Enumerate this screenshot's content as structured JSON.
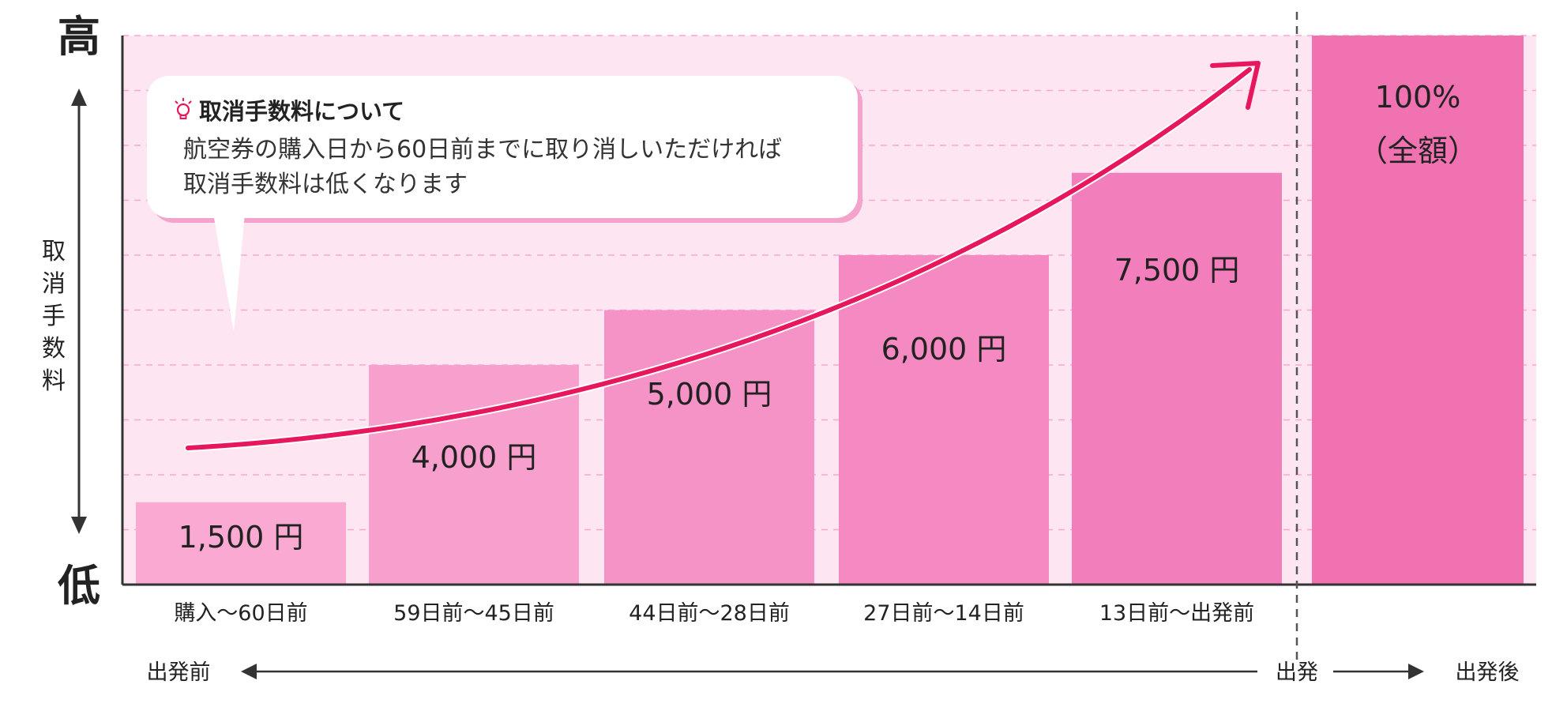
{
  "chart_data": {
    "type": "bar",
    "y_axis": {
      "top_label": "高",
      "bottom_label": "低",
      "title": "取消手数料"
    },
    "ylim": [
      0,
      100
    ],
    "grid": true,
    "categories": [
      "購入～60日前",
      "59日前～45日前",
      "44日前～28日前",
      "27日前～14日前",
      "13日前～出発前",
      ""
    ],
    "values": [
      15,
      40,
      50,
      60,
      75,
      100
    ],
    "value_labels": [
      "1,500 円",
      "4,000 円",
      "5,000 円",
      "6,000 円",
      "7,500 円",
      "100%\n（全額）"
    ],
    "bar_colors": [
      "#f9a9d2",
      "#f7a0cd",
      "#f593c6",
      "#f48ac1",
      "#f27fbb",
      "#f072b1"
    ],
    "trend_arrow_color": "#e8175d",
    "timeline": {
      "before": "出発前",
      "departure": "出発",
      "after": "出発後"
    }
  },
  "bubble": {
    "title": "取消手数料について",
    "line1": "航空券の購入日から60日前までに取り消しいただければ",
    "line2": "取消手数料は低くなります"
  },
  "colors": {
    "background_panel": "#fde6f1",
    "grid": "#f4a8cd",
    "axis": "#333333"
  }
}
